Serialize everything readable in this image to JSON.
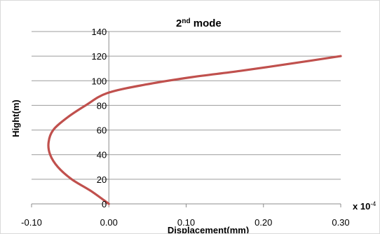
{
  "chart_data": {
    "type": "line",
    "title": "2",
    "title_superscript": "nd",
    "title_suffix": " mode",
    "xlabel": "Displacement(mm)",
    "ylabel": "Hight(m)",
    "x_multiplier": "x 10",
    "x_multiplier_exponent": "-4",
    "xlim": [
      -0.1,
      0.3
    ],
    "ylim": [
      0,
      140
    ],
    "xticks": [
      -0.1,
      0.0,
      0.1,
      0.2,
      0.3
    ],
    "xtick_labels": [
      "-0.10",
      "0.00",
      "0.10",
      "0.20",
      "0.30"
    ],
    "yticks": [
      0,
      20,
      40,
      60,
      80,
      100,
      120,
      140
    ],
    "ytick_labels": [
      "0",
      "20",
      "40",
      "60",
      "80",
      "100",
      "120",
      "140"
    ],
    "grid": "horizontal",
    "legend": "none",
    "series": [
      {
        "color": "#c0504d",
        "x": [
          0.0,
          -0.022,
          -0.048,
          -0.066,
          -0.076,
          -0.078,
          -0.072,
          -0.054,
          -0.03,
          -0.002,
          0.048,
          0.108,
          0.17,
          0.236,
          0.3
        ],
        "y": [
          0,
          10,
          20,
          30,
          40,
          50,
          60,
          70,
          80,
          90,
          97,
          103,
          108,
          114,
          120
        ]
      }
    ]
  }
}
